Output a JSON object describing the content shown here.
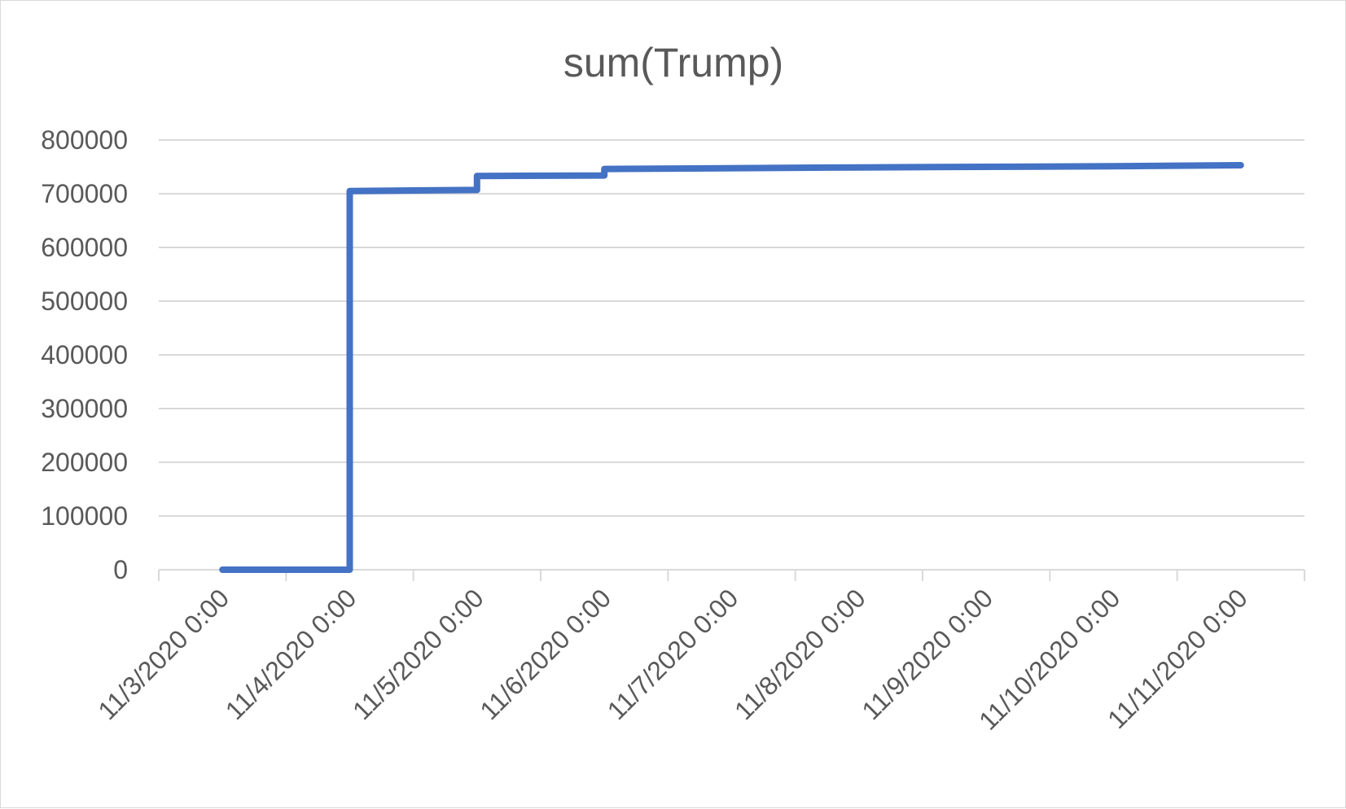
{
  "chart_data": {
    "type": "line",
    "title": "sum(Trump)",
    "xlabel": "",
    "ylabel": "",
    "ylim": [
      0,
      800000
    ],
    "yticks": [
      "0",
      "100000",
      "200000",
      "300000",
      "400000",
      "500000",
      "600000",
      "700000",
      "800000"
    ],
    "x_tick_labels": [
      "11/3/2020 0:00",
      "11/4/2020 0:00",
      "11/5/2020 0:00",
      "11/6/2020 0:00",
      "11/7/2020 0:00",
      "11/8/2020 0:00",
      "11/9/2020 0:00",
      "11/10/2020 0:00",
      "11/11/2020 0:00"
    ],
    "grid": true,
    "legend": "none",
    "line_color": "#4472c4",
    "series": [
      {
        "x": [
          "11/3/2020 12:00",
          "11/4/2020 12:00",
          "11/4/2020 12:00",
          "11/5/2020 12:00",
          "11/5/2020 12:00",
          "11/6/2020 12:00",
          "11/6/2020 12:00",
          "11/8/2020 12:00",
          "11/10/2020 12:00",
          "11/11/2020 12:00"
        ],
        "values": [
          0,
          0,
          705000,
          707000,
          733000,
          734000,
          746000,
          749000,
          751000,
          753000
        ]
      }
    ]
  }
}
